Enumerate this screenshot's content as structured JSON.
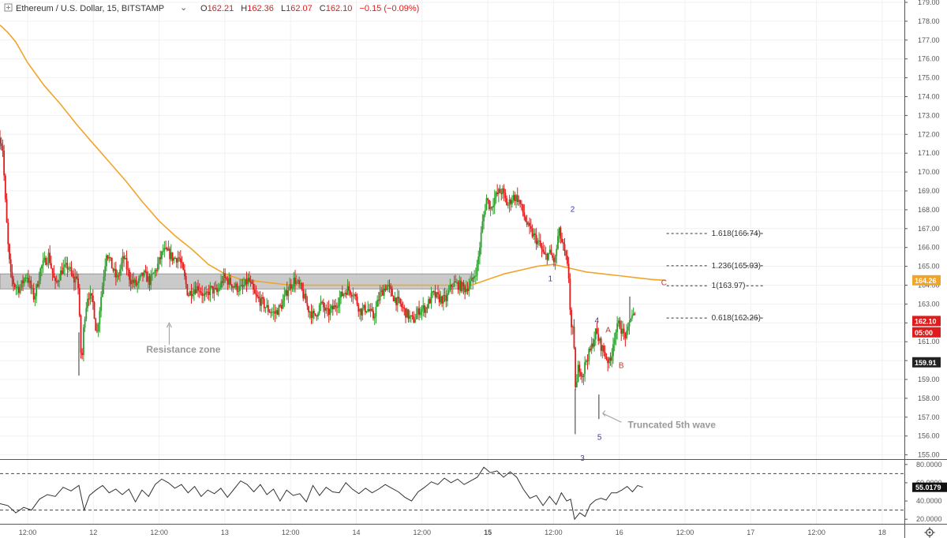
{
  "header": {
    "symbol": "Ethereum / U.S. Dollar, 15, BITSTAMP",
    "chevron_icon": "chevron-down-icon",
    "ohlc": {
      "o_label": "O",
      "o": "162.21",
      "h_label": "H",
      "h": "162.36",
      "l_label": "L",
      "l": "162.07",
      "c_label": "C",
      "c": "162.10",
      "change": "−0.15 (−0.09%)"
    }
  },
  "colors": {
    "up": "#2ca02c",
    "down": "#e01b1b",
    "ma": "#f0a52a",
    "fib": "#333333",
    "wave_blue": "#3a3aa8",
    "wave_red": "#c0392b",
    "zone_fill": "#b8b8b8",
    "annotation": "#999999",
    "rsi_line": "#333333"
  },
  "chart_data": {
    "type": "candlestick",
    "title": "Ethereum / U.S. Dollar, 15, BITSTAMP",
    "y_axis": {
      "min": 155,
      "max": 179,
      "ticks": [
        "155.00",
        "156.00",
        "157.00",
        "158.00",
        "159.00",
        "160.00",
        "161.00",
        "162.00",
        "163.00",
        "164.00",
        "165.00",
        "166.00",
        "167.00",
        "168.00",
        "169.00",
        "170.00",
        "171.00",
        "172.00",
        "173.00",
        "174.00",
        "175.00",
        "176.00",
        "177.00",
        "178.00",
        "179.00"
      ]
    },
    "x_axis": {
      "labels": [
        {
          "label": "12:00",
          "t": 0
        },
        {
          "label": "12",
          "t": 1,
          "bold": false
        },
        {
          "label": "12:00",
          "t": 2
        },
        {
          "label": "13",
          "t": 3
        },
        {
          "label": "12:00",
          "t": 4
        },
        {
          "label": "14",
          "t": 5
        },
        {
          "label": "12:00",
          "t": 6
        },
        {
          "label": "15",
          "t": 7,
          "bold": true
        },
        {
          "label": "12:00",
          "t": 8
        },
        {
          "label": "16",
          "t": 9
        },
        {
          "label": "12:00",
          "t": 10
        },
        {
          "label": "17",
          "t": 11
        },
        {
          "label": "12:00",
          "t": 12
        },
        {
          "label": "18",
          "t": 13
        }
      ]
    },
    "price_path": [
      [
        -0.42,
        171.8
      ],
      [
        -0.38,
        171.3
      ],
      [
        -0.34,
        168.5
      ],
      [
        -0.3,
        166.2
      ],
      [
        -0.26,
        164.5
      ],
      [
        -0.2,
        164.0
      ],
      [
        -0.12,
        163.8
      ],
      [
        -0.02,
        164.6
      ],
      [
        0.1,
        163.3
      ],
      [
        0.2,
        164.9
      ],
      [
        0.32,
        165.6
      ],
      [
        0.42,
        164.0
      ],
      [
        0.52,
        164.8
      ],
      [
        0.62,
        165.0
      ],
      [
        0.7,
        164.2
      ],
      [
        0.76,
        164.6
      ],
      [
        0.82,
        159.6
      ],
      [
        0.86,
        162.2
      ],
      [
        0.92,
        163.6
      ],
      [
        1.0,
        163.0
      ],
      [
        1.05,
        161.3
      ],
      [
        1.12,
        163.5
      ],
      [
        1.2,
        165.8
      ],
      [
        1.28,
        165.0
      ],
      [
        1.36,
        164.3
      ],
      [
        1.46,
        165.5
      ],
      [
        1.56,
        164.3
      ],
      [
        1.66,
        164.0
      ],
      [
        1.76,
        164.6
      ],
      [
        1.86,
        164.2
      ],
      [
        1.96,
        164.9
      ],
      [
        2.06,
        165.8
      ],
      [
        2.14,
        165.7
      ],
      [
        2.22,
        165.4
      ],
      [
        2.3,
        165.5
      ],
      [
        2.38,
        164.5
      ],
      [
        2.44,
        163.5
      ],
      [
        2.52,
        163.8
      ],
      [
        2.6,
        163.9
      ],
      [
        2.7,
        163.3
      ],
      [
        2.78,
        163.8
      ],
      [
        2.88,
        163.6
      ],
      [
        2.98,
        164.4
      ],
      [
        3.06,
        164.2
      ],
      [
        3.16,
        163.9
      ],
      [
        3.26,
        163.8
      ],
      [
        3.36,
        164.3
      ],
      [
        3.46,
        163.4
      ],
      [
        3.56,
        163.1
      ],
      [
        3.66,
        162.7
      ],
      [
        3.76,
        162.5
      ],
      [
        3.86,
        162.9
      ],
      [
        3.96,
        163.8
      ],
      [
        4.06,
        164.3
      ],
      [
        4.16,
        163.8
      ],
      [
        4.26,
        162.8
      ],
      [
        4.36,
        162.3
      ],
      [
        4.46,
        163.0
      ],
      [
        4.56,
        162.5
      ],
      [
        4.66,
        162.8
      ],
      [
        4.76,
        163.4
      ],
      [
        4.86,
        163.8
      ],
      [
        4.96,
        163.6
      ],
      [
        5.06,
        162.6
      ],
      [
        5.16,
        162.8
      ],
      [
        5.26,
        162.3
      ],
      [
        5.36,
        163.5
      ],
      [
        5.46,
        164.0
      ],
      [
        5.56,
        163.4
      ],
      [
        5.66,
        163.0
      ],
      [
        5.76,
        162.5
      ],
      [
        5.86,
        162.1
      ],
      [
        5.96,
        162.7
      ],
      [
        6.06,
        162.8
      ],
      [
        6.16,
        163.5
      ],
      [
        6.26,
        163.3
      ],
      [
        6.36,
        163.2
      ],
      [
        6.46,
        164.1
      ],
      [
        6.56,
        164.0
      ],
      [
        6.66,
        163.8
      ],
      [
        6.76,
        164.2
      ],
      [
        6.84,
        165.0
      ],
      [
        6.92,
        167.3
      ],
      [
        6.98,
        168.6
      ],
      [
        7.04,
        168.1
      ],
      [
        7.1,
        168.6
      ],
      [
        7.16,
        168.9
      ],
      [
        7.22,
        169.0
      ],
      [
        7.3,
        168.2
      ],
      [
        7.38,
        168.7
      ],
      [
        7.46,
        168.6
      ],
      [
        7.54,
        167.8
      ],
      [
        7.62,
        167.0
      ],
      [
        7.7,
        166.6
      ],
      [
        7.78,
        166.2
      ],
      [
        7.86,
        165.5
      ],
      [
        7.94,
        165.7
      ],
      [
        8.02,
        165.2
      ],
      [
        8.08,
        166.9
      ],
      [
        8.14,
        166.1
      ],
      [
        8.2,
        165.2
      ],
      [
        8.24,
        164.2
      ],
      [
        8.26,
        161.8
      ],
      [
        8.3,
        161.5
      ],
      [
        8.34,
        158.2
      ],
      [
        8.38,
        159.8
      ],
      [
        8.44,
        159.2
      ],
      [
        8.5,
        160.1
      ],
      [
        8.56,
        160.5
      ],
      [
        8.64,
        161.5
      ],
      [
        8.72,
        160.8
      ],
      [
        8.8,
        160.2
      ],
      [
        8.86,
        159.8
      ],
      [
        8.92,
        161.3
      ],
      [
        9.0,
        162.0
      ],
      [
        9.06,
        161.4
      ],
      [
        9.12,
        161.3
      ],
      [
        9.18,
        162.5
      ],
      [
        9.24,
        162.3
      ]
    ],
    "moving_average": [
      [
        -0.42,
        177.8
      ],
      [
        -0.3,
        177.4
      ],
      [
        -0.18,
        176.9
      ],
      [
        0.0,
        175.8
      ],
      [
        0.25,
        174.6
      ],
      [
        0.5,
        173.6
      ],
      [
        0.75,
        172.5
      ],
      [
        1.0,
        171.5
      ],
      [
        1.25,
        170.5
      ],
      [
        1.5,
        169.5
      ],
      [
        1.75,
        168.4
      ],
      [
        2.0,
        167.4
      ],
      [
        2.25,
        166.6
      ],
      [
        2.5,
        165.9
      ],
      [
        2.75,
        165.1
      ],
      [
        3.0,
        164.6
      ],
      [
        3.25,
        164.3
      ],
      [
        3.5,
        164.2
      ],
      [
        3.75,
        164.1
      ],
      [
        4.0,
        164.0
      ],
      [
        4.25,
        164.0
      ],
      [
        4.5,
        164.0
      ],
      [
        4.75,
        164.0
      ],
      [
        5.0,
        164.0
      ],
      [
        5.25,
        164.0
      ],
      [
        5.5,
        164.0
      ],
      [
        5.75,
        164.0
      ],
      [
        6.0,
        164.0
      ],
      [
        6.25,
        164.0
      ],
      [
        6.5,
        164.0
      ],
      [
        6.75,
        164.0
      ],
      [
        7.0,
        164.3
      ],
      [
        7.25,
        164.6
      ],
      [
        7.5,
        164.8
      ],
      [
        7.75,
        165.0
      ],
      [
        8.0,
        165.1
      ],
      [
        8.25,
        164.9
      ],
      [
        8.5,
        164.7
      ],
      [
        8.75,
        164.6
      ],
      [
        9.0,
        164.5
      ],
      [
        9.25,
        164.4
      ],
      [
        9.5,
        164.3
      ],
      [
        9.7,
        164.26
      ]
    ],
    "resistance_zone": {
      "t_start": -0.42,
      "t_end": 6.78,
      "low": 163.8,
      "high": 164.6
    },
    "fib_levels": [
      {
        "label": "1.618(166.74)",
        "value": 166.74
      },
      {
        "label": "1.236(165.03)",
        "value": 165.03
      },
      {
        "label": "1(163.97)",
        "value": 163.97
      },
      {
        "label": "0.618(162.26)",
        "value": 162.26
      }
    ],
    "fib_t_start": 9.72,
    "fib_t_end": 10.45,
    "wave_labels": [
      {
        "label": "1",
        "t": 7.95,
        "value": 164.2,
        "color": "blue"
      },
      {
        "label": "2",
        "t": 8.29,
        "value": 167.9,
        "color": "blue"
      },
      {
        "label": "3",
        "t": 8.44,
        "value": 154.7,
        "color": "blue"
      },
      {
        "label": "4",
        "t": 8.66,
        "value": 162.0,
        "color": "blue"
      },
      {
        "label": "5",
        "t": 8.7,
        "value": 155.8,
        "color": "blue"
      },
      {
        "label": "A",
        "t": 8.83,
        "value": 161.5,
        "color": "red"
      },
      {
        "label": "B",
        "t": 9.03,
        "value": 159.6,
        "color": "red"
      },
      {
        "label": "C",
        "t": 9.68,
        "value": 164.0,
        "color": "red"
      }
    ],
    "annotations": [
      {
        "text": "Resistance zone",
        "t": 2.37,
        "value": 160.6
      },
      {
        "text": "Truncated 5th wave",
        "t": 9.85,
        "value": 156.6
      }
    ],
    "price_badges": [
      {
        "label": "164.26",
        "value": 164.26,
        "bg": "#f0a52a"
      },
      {
        "label": "162.10",
        "value": 162.1,
        "bg": "#e01b1b"
      },
      {
        "label": "05:00",
        "value": 161.5,
        "bg": "#e01b1b"
      },
      {
        "label": "159.91",
        "value": 159.91,
        "bg": "#222222"
      }
    ],
    "rsi": {
      "min": 15,
      "max": 85,
      "ticks": [
        "80.0000",
        "60.0000",
        "40.0000",
        "20.0000"
      ],
      "upper": 70,
      "lower": 30,
      "current": "55.0179",
      "series": [
        [
          -0.42,
          37
        ],
        [
          -0.3,
          35
        ],
        [
          -0.18,
          27
        ],
        [
          -0.06,
          33
        ],
        [
          0.06,
          30
        ],
        [
          0.18,
          42
        ],
        [
          0.3,
          47
        ],
        [
          0.42,
          45
        ],
        [
          0.54,
          55
        ],
        [
          0.66,
          51
        ],
        [
          0.78,
          57
        ],
        [
          0.86,
          30
        ],
        [
          0.94,
          46
        ],
        [
          1.04,
          52
        ],
        [
          1.14,
          57
        ],
        [
          1.24,
          49
        ],
        [
          1.34,
          53
        ],
        [
          1.44,
          47
        ],
        [
          1.54,
          53
        ],
        [
          1.64,
          39
        ],
        [
          1.74,
          52
        ],
        [
          1.84,
          45
        ],
        [
          1.94,
          58
        ],
        [
          2.04,
          64
        ],
        [
          2.14,
          60
        ],
        [
          2.24,
          54
        ],
        [
          2.34,
          58
        ],
        [
          2.44,
          49
        ],
        [
          2.54,
          56
        ],
        [
          2.64,
          45
        ],
        [
          2.74,
          52
        ],
        [
          2.84,
          48
        ],
        [
          2.94,
          54
        ],
        [
          3.04,
          44
        ],
        [
          3.14,
          53
        ],
        [
          3.24,
          62
        ],
        [
          3.34,
          58
        ],
        [
          3.44,
          50
        ],
        [
          3.54,
          58
        ],
        [
          3.64,
          47
        ],
        [
          3.74,
          53
        ],
        [
          3.84,
          40
        ],
        [
          3.94,
          52
        ],
        [
          4.04,
          46
        ],
        [
          4.14,
          48
        ],
        [
          4.24,
          39
        ],
        [
          4.34,
          57
        ],
        [
          4.44,
          46
        ],
        [
          4.54,
          55
        ],
        [
          4.64,
          50
        ],
        [
          4.74,
          49
        ],
        [
          4.84,
          60
        ],
        [
          4.94,
          53
        ],
        [
          5.04,
          48
        ],
        [
          5.14,
          54
        ],
        [
          5.24,
          49
        ],
        [
          5.34,
          53
        ],
        [
          5.44,
          58
        ],
        [
          5.54,
          54
        ],
        [
          5.64,
          50
        ],
        [
          5.74,
          44
        ],
        [
          5.84,
          40
        ],
        [
          5.94,
          50
        ],
        [
          6.04,
          55
        ],
        [
          6.14,
          61
        ],
        [
          6.24,
          58
        ],
        [
          6.34,
          65
        ],
        [
          6.44,
          60
        ],
        [
          6.54,
          64
        ],
        [
          6.64,
          58
        ],
        [
          6.74,
          62
        ],
        [
          6.84,
          66
        ],
        [
          6.94,
          77
        ],
        [
          7.04,
          71
        ],
        [
          7.14,
          73
        ],
        [
          7.24,
          66
        ],
        [
          7.34,
          72
        ],
        [
          7.44,
          66
        ],
        [
          7.54,
          53
        ],
        [
          7.64,
          43
        ],
        [
          7.74,
          46
        ],
        [
          7.84,
          35
        ],
        [
          7.94,
          45
        ],
        [
          8.04,
          36
        ],
        [
          8.12,
          49
        ],
        [
          8.2,
          40
        ],
        [
          8.26,
          42
        ],
        [
          8.32,
          20
        ],
        [
          8.4,
          27
        ],
        [
          8.48,
          23
        ],
        [
          8.56,
          36
        ],
        [
          8.64,
          41
        ],
        [
          8.72,
          43
        ],
        [
          8.8,
          41
        ],
        [
          8.88,
          49
        ],
        [
          8.96,
          49
        ],
        [
          9.04,
          52
        ],
        [
          9.12,
          56
        ],
        [
          9.2,
          50
        ],
        [
          9.28,
          57
        ],
        [
          9.36,
          55
        ]
      ]
    }
  }
}
